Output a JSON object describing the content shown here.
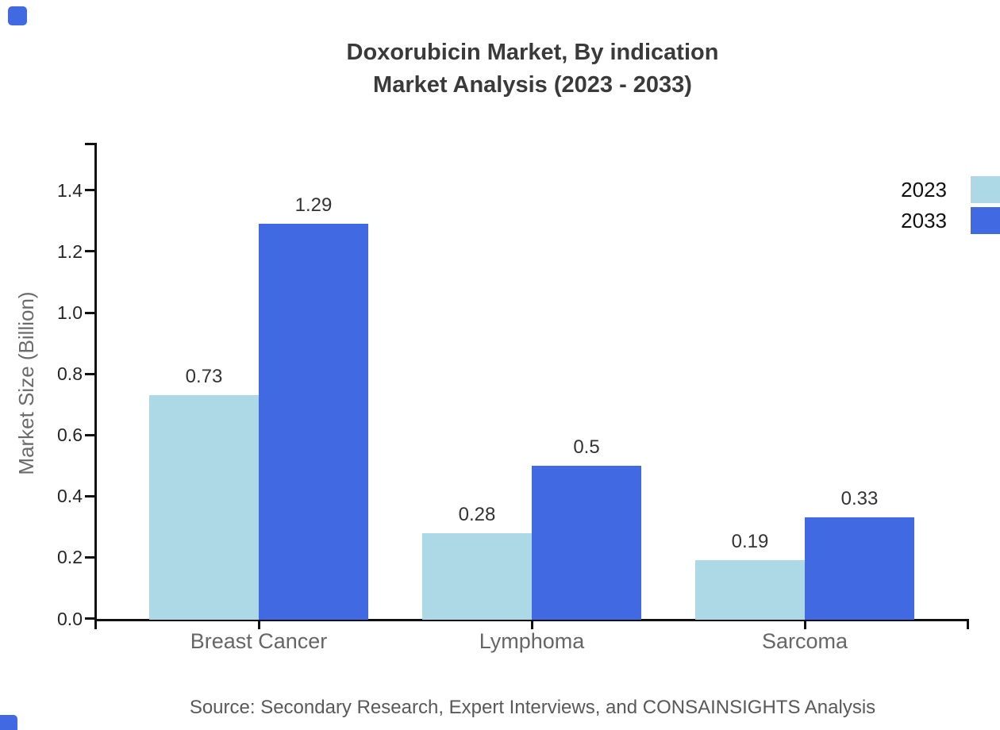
{
  "title": {
    "line1": "Doxorubicin Market, By indication",
    "line2": "Market Analysis (2023 - 2033)"
  },
  "legend": {
    "items": [
      {
        "label": "2023",
        "color": "#add8e6"
      },
      {
        "label": "2033",
        "color": "#4169e1"
      }
    ]
  },
  "axes": {
    "y_label": "Market Size (Billion)",
    "y_tick_labels": [
      "0.0",
      "0.2",
      "0.4",
      "0.6",
      "0.8",
      "1.0",
      "1.2",
      "1.4"
    ],
    "category_labels": [
      "Breast Cancer",
      "Lymphoma",
      "Sarcoma"
    ]
  },
  "source": {
    "text": "Source: Secondary Research, Expert Interviews, and CONSAINSIGHTS Analysis"
  },
  "colors": {
    "series_2023": "#add8e6",
    "series_2033": "#4169e1",
    "axis": "#111111",
    "title_text": "#3a3a3a",
    "tick_label_text": "#262626",
    "category_label_text": "#666666",
    "axis_label_text": "#6a6a6a",
    "value_label_text": "#333333",
    "legend_label_text": "#111111",
    "source_text": "#595959",
    "brand_mark": "#4169e1"
  },
  "chart_data": {
    "type": "bar",
    "title": "Doxorubicin Market, By indication — Market Analysis (2023 - 2033)",
    "categories": [
      "Breast Cancer",
      "Lymphoma",
      "Sarcoma"
    ],
    "series": [
      {
        "name": "2023",
        "color": "#add8e6",
        "values": [
          0.73,
          0.28,
          0.19
        ],
        "value_labels": [
          "0.73",
          "0.28",
          "0.19"
        ]
      },
      {
        "name": "2033",
        "color": "#4169e1",
        "values": [
          1.29,
          0.5,
          0.33
        ],
        "value_labels": [
          "1.29",
          "0.5",
          "0.33"
        ]
      }
    ],
    "xlabel": "",
    "ylabel": "Market Size (Billion)",
    "ylim": [
      0,
      1.55
    ],
    "yticks": [
      0.0,
      0.2,
      0.4,
      0.6,
      0.8,
      1.0,
      1.2,
      1.4
    ],
    "grid": false,
    "legend_position": "top-right outside plot",
    "bar_value_labels": true
  }
}
